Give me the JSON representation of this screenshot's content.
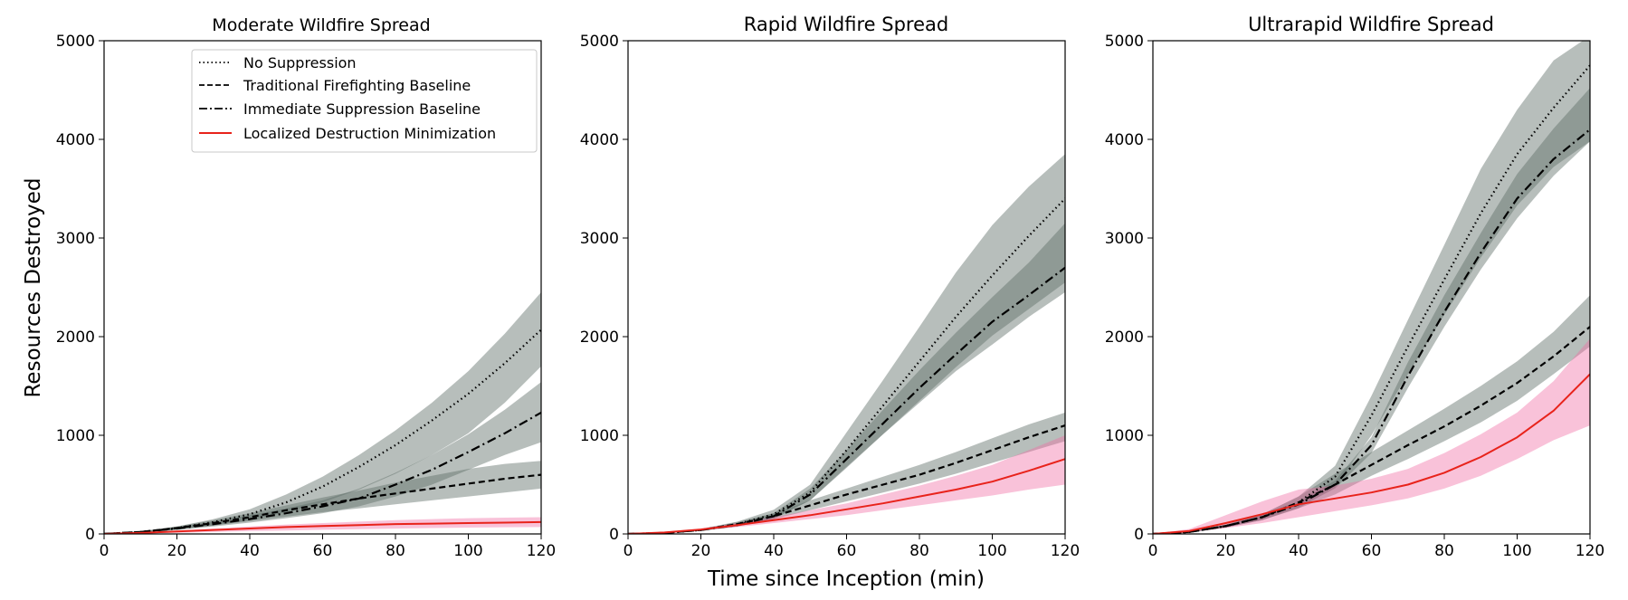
{
  "chart_data": {
    "type": "line",
    "xlabel": "Time since Inception (min)",
    "ylabel": "Resources Destroyed",
    "xlim": [
      0,
      120
    ],
    "ylim": [
      0,
      5000
    ],
    "xticks": [
      0,
      20,
      40,
      60,
      80,
      100,
      120
    ],
    "yticks": [
      0,
      1000,
      2000,
      3000,
      4000,
      5000
    ],
    "x": [
      0,
      10,
      20,
      30,
      40,
      50,
      60,
      70,
      80,
      90,
      100,
      110,
      120
    ],
    "legend": {
      "location": "upper center of first panel",
      "entries": [
        {
          "name": "No Suppression",
          "style": "dotted",
          "color": "#000000"
        },
        {
          "name": "Traditional Firefighting Baseline",
          "style": "dashed",
          "color": "#000000"
        },
        {
          "name": "Immediate Suppression Baseline",
          "style": "dashdot",
          "color": "#000000"
        },
        {
          "name": "Localized Destruction Minimization",
          "style": "solid",
          "color": "#e8231b"
        }
      ]
    },
    "colors": {
      "band_gray": "#5f6e69",
      "band_pink": "#f06ea5",
      "red_line": "#e8231b"
    },
    "panels": [
      {
        "title": "Moderate Wildfire Spread",
        "series": [
          {
            "name": "No Suppression",
            "values": [
              0,
              20,
              60,
              120,
              200,
              320,
              480,
              680,
              900,
              1150,
              1420,
              1730,
              2070
            ],
            "lower": [
              0,
              15,
              45,
              85,
              140,
              220,
              320,
              450,
              610,
              800,
              1020,
              1330,
              1700
            ],
            "upper": [
              0,
              25,
              75,
              150,
              250,
              400,
              580,
              800,
              1050,
              1330,
              1650,
              2030,
              2450
            ]
          },
          {
            "name": "Traditional Firefighting Baseline",
            "values": [
              0,
              20,
              60,
              110,
              170,
              240,
              300,
              360,
              410,
              460,
              510,
              560,
              600
            ],
            "lower": [
              0,
              15,
              45,
              85,
              130,
              175,
              220,
              260,
              300,
              340,
              380,
              420,
              460
            ],
            "upper": [
              0,
              25,
              75,
              140,
              210,
              290,
              370,
              440,
              520,
              590,
              660,
              710,
              740
            ]
          },
          {
            "name": "Immediate Suppression Baseline",
            "values": [
              0,
              20,
              55,
              100,
              150,
              210,
              280,
              360,
              500,
              650,
              830,
              1020,
              1230
            ],
            "lower": [
              0,
              15,
              40,
              75,
              115,
              160,
              210,
              280,
              380,
              500,
              650,
              800,
              930
            ],
            "upper": [
              0,
              25,
              70,
              125,
              190,
              260,
              340,
              460,
              620,
              800,
              1010,
              1260,
              1540
            ]
          },
          {
            "name": "Localized Destruction Minimization",
            "values": [
              0,
              10,
              25,
              40,
              55,
              70,
              80,
              90,
              100,
              105,
              110,
              115,
              120
            ],
            "lower": [
              0,
              6,
              12,
              20,
              28,
              35,
              42,
              48,
              54,
              60,
              64,
              68,
              70
            ],
            "upper": [
              0,
              15,
              35,
              55,
              75,
              95,
              110,
              125,
              140,
              150,
              160,
              165,
              170
            ]
          }
        ]
      },
      {
        "title": "Rapid Wildfire Spread",
        "series": [
          {
            "name": "No Suppression",
            "values": [
              0,
              10,
              40,
              100,
              200,
              420,
              850,
              1300,
              1750,
              2200,
              2620,
              3020,
              3400
            ],
            "lower": [
              0,
              8,
              30,
              75,
              160,
              340,
              680,
              1010,
              1330,
              1650,
              1920,
              2200,
              2450
            ],
            "upper": [
              0,
              12,
              50,
              125,
              245,
              500,
              1030,
              1560,
              2100,
              2650,
              3130,
              3520,
              3850
            ]
          },
          {
            "name": "Traditional Firefighting Baseline",
            "values": [
              0,
              10,
              40,
              100,
              180,
              290,
              400,
              500,
              600,
              720,
              850,
              980,
              1100
            ],
            "lower": [
              0,
              8,
              32,
              80,
              150,
              240,
              330,
              420,
              510,
              610,
              720,
              830,
              940
            ],
            "upper": [
              0,
              12,
              48,
              120,
              210,
              340,
              460,
              580,
              700,
              830,
              970,
              1110,
              1230
            ]
          },
          {
            "name": "Immediate Suppression Baseline",
            "values": [
              0,
              10,
              40,
              90,
              180,
              400,
              760,
              1120,
              1480,
              1820,
              2150,
              2420,
              2700
            ],
            "lower": [
              0,
              8,
              32,
              75,
              150,
              340,
              670,
              1010,
              1350,
              1690,
              2010,
              2280,
              2550
            ],
            "upper": [
              0,
              12,
              48,
              105,
              210,
              460,
              850,
              1260,
              1660,
              2040,
              2400,
              2750,
              3150
            ]
          },
          {
            "name": "Localized Destruction Minimization",
            "values": [
              0,
              15,
              45,
              90,
              140,
              190,
              250,
              310,
              380,
              450,
              530,
              640,
              760
            ],
            "lower": [
              0,
              12,
              35,
              70,
              110,
              150,
              190,
              240,
              290,
              340,
              390,
              450,
              500
            ],
            "upper": [
              0,
              20,
              55,
              110,
              170,
              240,
              310,
              400,
              490,
              590,
              700,
              850,
              1000
            ]
          }
        ]
      },
      {
        "title": "Ultrarapid Wildfire Spread",
        "series": [
          {
            "name": "No Suppression",
            "values": [
              0,
              20,
              80,
              170,
              320,
              580,
              1200,
              1900,
              2580,
              3250,
              3850,
              4320,
              4750
            ],
            "lower": [
              0,
              15,
              65,
              140,
              260,
              470,
              1000,
              1620,
              2220,
              2800,
              3330,
              3720,
              3980
            ],
            "upper": [
              0,
              25,
              95,
              200,
              380,
              690,
              1400,
              2170,
              2930,
              3700,
              4300,
              4800,
              5050
            ]
          },
          {
            "name": "Traditional Firefighting Baseline",
            "values": [
              0,
              20,
              80,
              170,
              320,
              500,
              700,
              900,
              1090,
              1300,
              1530,
              1800,
              2100
            ],
            "lower": [
              0,
              15,
              65,
              140,
              260,
              400,
              590,
              760,
              940,
              1130,
              1350,
              1620,
              1900
            ],
            "upper": [
              0,
              25,
              95,
              200,
              380,
              610,
              830,
              1050,
              1270,
              1500,
              1750,
              2050,
              2420
            ]
          },
          {
            "name": "Immediate Suppression Baseline",
            "values": [
              0,
              20,
              80,
              170,
              300,
              500,
              900,
              1600,
              2250,
              2850,
              3400,
              3800,
              4100
            ],
            "lower": [
              0,
              15,
              65,
              140,
              270,
              460,
              820,
              1480,
              2100,
              2680,
              3200,
              3630,
              3980
            ],
            "upper": [
              0,
              25,
              95,
              200,
              330,
              540,
              980,
              1740,
              2420,
              3050,
              3650,
              4110,
              4520
            ]
          },
          {
            "name": "Localized Destruction Minimization",
            "values": [
              0,
              30,
              110,
              200,
              300,
              360,
              420,
              500,
              620,
              780,
              980,
              1250,
              1620
            ],
            "lower": [
              0,
              15,
              60,
              110,
              170,
              230,
              290,
              360,
              460,
              590,
              760,
              950,
              1100
            ],
            "upper": [
              0,
              50,
              190,
              330,
              450,
              490,
              560,
              660,
              820,
              1010,
              1230,
              1550,
              1980
            ]
          }
        ]
      }
    ]
  }
}
